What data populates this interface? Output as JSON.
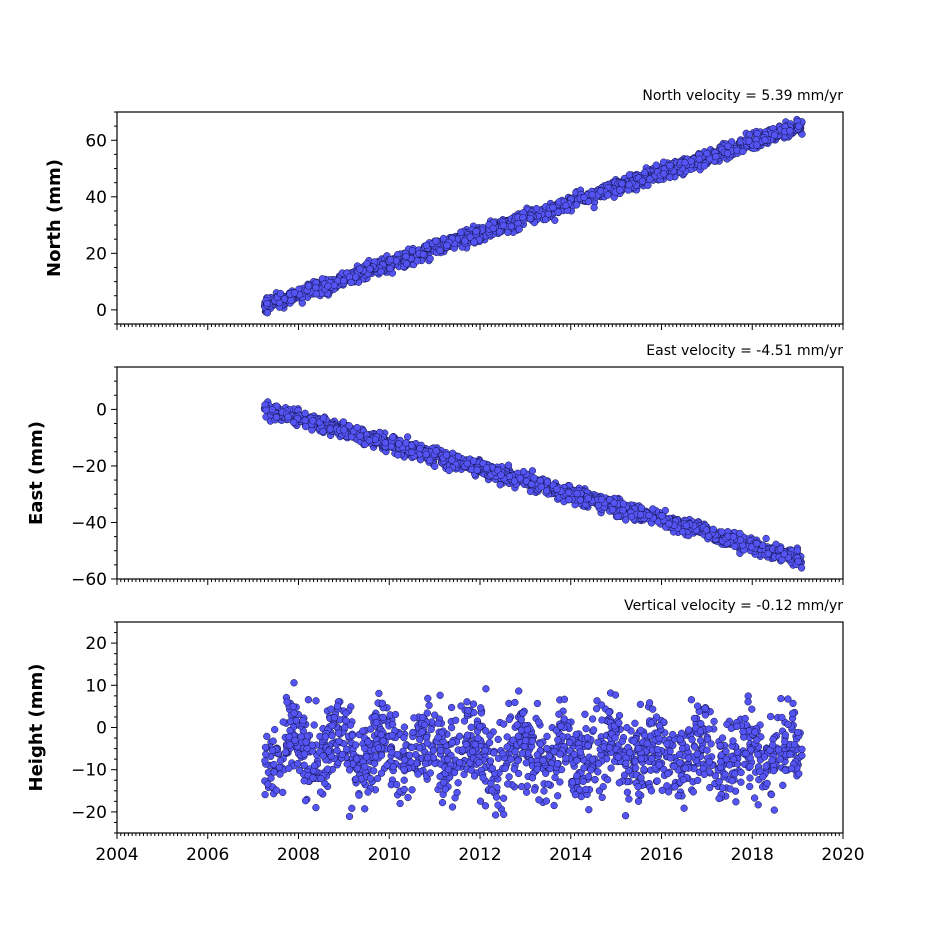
{
  "chart_data": [
    {
      "type": "scatter",
      "title": "North velocity = 5.39 mm/yr",
      "ylabel": "North (mm)",
      "xlim": [
        2004,
        2020
      ],
      "ylim": [
        -5,
        70
      ],
      "yticks": [
        0,
        20,
        40,
        60
      ],
      "xticks": [
        2004,
        2006,
        2008,
        2010,
        2012,
        2014,
        2016,
        2018,
        2020
      ],
      "show_xtick_labels": false,
      "series": [
        {
          "x_range": [
            2007.25,
            2019.1
          ],
          "trend": {
            "slope_mm_per_yr": 5.39,
            "value_at_start": 1.5
          },
          "noise_mm": 1.4
        }
      ]
    },
    {
      "type": "scatter",
      "title": "East velocity = -4.51 mm/yr",
      "ylabel": "East (mm)",
      "xlim": [
        2004,
        2020
      ],
      "ylim": [
        -60,
        15
      ],
      "yticks": [
        -60,
        -40,
        -20,
        0
      ],
      "xticks": [
        2004,
        2006,
        2008,
        2010,
        2012,
        2014,
        2016,
        2018,
        2020
      ],
      "show_xtick_labels": false,
      "series": [
        {
          "x_range": [
            2007.25,
            2019.1
          ],
          "trend": {
            "slope_mm_per_yr": -4.51,
            "value_at_start": 0.5
          },
          "noise_mm": 1.4
        }
      ]
    },
    {
      "type": "scatter",
      "title": "Vertical velocity = -0.12 mm/yr",
      "ylabel": "Height (mm)",
      "xlim": [
        2004,
        2020
      ],
      "ylim": [
        -25,
        25
      ],
      "yticks": [
        -20,
        -10,
        0,
        10,
        20
      ],
      "xticks": [
        2004,
        2006,
        2008,
        2010,
        2012,
        2014,
        2016,
        2018,
        2020
      ],
      "show_xtick_labels": true,
      "series": [
        {
          "x_range": [
            2007.25,
            2019.1
          ],
          "trend": {
            "slope_mm_per_yr": -0.12,
            "value_at_start": -5
          },
          "noise_mm": 5
        }
      ]
    }
  ],
  "colors": {
    "marker_fill": "#5454f5",
    "marker_edge": "#101040"
  }
}
